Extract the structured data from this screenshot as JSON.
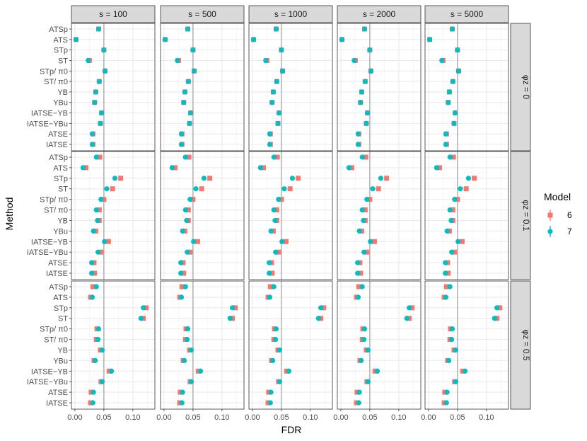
{
  "chart_data": {
    "type": "scatter",
    "title": "",
    "xlabel": "FDR",
    "ylabel": "Method",
    "xlim": [
      -0.006,
      0.138
    ],
    "xticks": [
      0.0,
      0.05,
      0.1
    ],
    "xtick_labels": [
      "0.00",
      "0.05",
      "0.10"
    ],
    "reference_line": 0.05,
    "facet_cols": [
      "s = 100",
      "s = 500",
      "s = 1000",
      "s = 2000",
      "s = 5000"
    ],
    "facet_rows": [
      "φz = 0",
      "φz = 0.1",
      "φz = 0.5"
    ],
    "methods": [
      "ATSp",
      "ATS",
      "STp",
      "ST",
      "STp/ π0",
      "ST/ π0",
      "YB",
      "YBu",
      "IATSE−YB",
      "IATSE−YBu",
      "ATSE",
      "IATSE"
    ],
    "legend": {
      "title": "Model",
      "placement": "right",
      "entries": [
        {
          "label": "6",
          "color": "#F8766D",
          "shape": "square"
        },
        {
          "label": "7",
          "color": "#00BFC4",
          "shape": "circle"
        }
      ]
    },
    "panels": [
      {
        "row": "φz = 0",
        "series": [
          {
            "name": "6",
            "values": [
              0.041,
              0.002,
              0.05,
              0.025,
              0.052,
              0.042,
              0.036,
              0.034,
              0.046,
              0.044,
              0.031,
              0.031
            ]
          },
          {
            "name": "7",
            "values": [
              0.041,
              0.002,
              0.05,
              0.023,
              0.052,
              0.042,
              0.036,
              0.034,
              0.046,
              0.044,
              0.03,
              0.03
            ]
          }
        ]
      },
      {
        "row": "φz = 0.1",
        "series": [
          {
            "name": "6",
            "values": [
              0.043,
              0.019,
              0.079,
              0.065,
              0.05,
              0.042,
              0.042,
              0.036,
              0.058,
              0.045,
              0.033,
              0.034
            ]
          },
          {
            "name": "7",
            "values": [
              0.037,
              0.014,
              0.069,
              0.055,
              0.045,
              0.037,
              0.039,
              0.032,
              0.051,
              0.04,
              0.029,
              0.029
            ]
          }
        ]
      },
      {
        "row": "φz = 0.5",
        "series": [
          {
            "name": "6",
            "values": [
              0.031,
              0.027,
              0.123,
              0.118,
              0.038,
              0.037,
              0.044,
              0.033,
              0.059,
              0.045,
              0.028,
              0.027
            ]
          },
          {
            "name": "7",
            "values": [
              0.037,
              0.03,
              0.118,
              0.114,
              0.041,
              0.04,
              0.047,
              0.035,
              0.063,
              0.047,
              0.032,
              0.031
            ]
          }
        ]
      }
    ]
  }
}
